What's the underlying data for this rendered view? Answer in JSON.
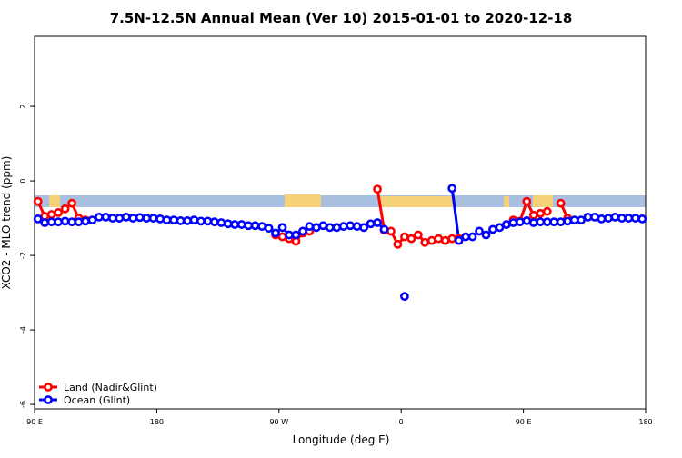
{
  "chart_data": {
    "type": "line",
    "title": "7.5N-12.5N Annual Mean (Ver 10)   2015-01-01 to 2020-12-18",
    "x_label": "Longitude (deg E)",
    "y_label": "XCO2 - MLO trend (ppm)",
    "x": [
      92.5,
      97.5,
      102.5,
      107.5,
      112.5,
      117.5,
      122.5,
      127.5,
      132.5,
      137.5,
      142.5,
      147.5,
      152.5,
      157.5,
      162.5,
      167.5,
      172.5,
      177.5,
      182.5,
      187.5,
      192.5,
      197.5,
      202.5,
      207.5,
      212.5,
      217.5,
      222.5,
      227.5,
      232.5,
      237.5,
      242.5,
      247.5,
      252.5,
      257.5,
      262.5,
      267.5,
      272.5,
      277.5,
      282.5,
      287.5,
      292.5,
      297.5,
      302.5,
      307.5,
      312.5,
      317.5,
      322.5,
      327.5,
      332.5,
      337.5,
      342.5,
      347.5,
      352.5,
      357.5,
      362.5,
      367.5,
      372.5,
      377.5,
      382.5,
      387.5,
      392.5,
      397.5,
      402.5,
      407.5,
      412.5,
      417.5,
      422.5,
      427.5,
      432.5,
      437.5,
      442.5,
      447.5,
      452.5,
      457.5,
      462.5,
      467.5,
      472.5,
      477.5,
      482.5,
      487.5,
      492.5,
      497.5,
      502.5,
      507.5,
      512.5,
      517.5,
      522.5,
      527.5,
      532.5,
      537.5
    ],
    "series": [
      {
        "name": "Land (Nadir&Glint)",
        "color": "#ff0000",
        "values": [
          -0.55,
          -0.95,
          -0.9,
          -0.85,
          -0.75,
          -0.6,
          -1.0,
          -1.05,
          null,
          null,
          null,
          null,
          null,
          null,
          null,
          null,
          null,
          null,
          null,
          null,
          null,
          null,
          null,
          null,
          null,
          null,
          null,
          null,
          null,
          null,
          null,
          null,
          null,
          null,
          null,
          -1.45,
          -1.5,
          -1.55,
          -1.62,
          -1.4,
          -1.35,
          null,
          null,
          null,
          null,
          null,
          null,
          null,
          null,
          null,
          -0.22,
          -1.32,
          -1.35,
          -1.7,
          -1.5,
          -1.55,
          -1.45,
          -1.65,
          -1.6,
          -1.55,
          -1.6,
          -1.55,
          -1.55,
          null,
          null,
          null,
          null,
          null,
          null,
          null,
          -1.05,
          -1.08,
          -0.55,
          -0.92,
          -0.87,
          -0.82,
          null,
          -0.6,
          -1.0,
          null,
          null,
          null,
          null,
          null,
          null,
          null,
          null,
          null,
          null,
          null
        ]
      },
      {
        "name": "Ocean (Glint)",
        "color": "#0000ff",
        "values": [
          -1.02,
          -1.12,
          -1.1,
          -1.1,
          -1.08,
          -1.1,
          -1.1,
          -1.08,
          -1.05,
          -0.97,
          -0.97,
          -1.0,
          -1.0,
          -0.97,
          -1.0,
          -0.98,
          -1.0,
          -1.0,
          -1.02,
          -1.05,
          -1.05,
          -1.07,
          -1.07,
          -1.05,
          -1.08,
          -1.08,
          -1.1,
          -1.12,
          -1.15,
          -1.17,
          -1.17,
          -1.2,
          -1.2,
          -1.22,
          -1.27,
          -1.4,
          -1.25,
          -1.45,
          -1.45,
          -1.35,
          -1.22,
          -1.25,
          -1.2,
          -1.25,
          -1.25,
          -1.22,
          -1.2,
          -1.22,
          -1.25,
          -1.15,
          -1.12,
          -1.3,
          null,
          null,
          -3.1,
          null,
          null,
          null,
          null,
          null,
          null,
          -0.2,
          -1.6,
          -1.5,
          -1.5,
          -1.35,
          -1.45,
          -1.3,
          -1.25,
          -1.17,
          -1.12,
          -1.1,
          -1.07,
          -1.12,
          -1.1,
          -1.1,
          -1.1,
          -1.1,
          -1.08,
          -1.05,
          -1.05,
          -0.97,
          -0.97,
          -1.02,
          -1.0,
          -0.97,
          -1.0,
          -1.0,
          -1.0,
          -1.02
        ]
      }
    ],
    "xlim": [
      90,
      540
    ],
    "xticks": [
      {
        "value": 90,
        "label": "90 E"
      },
      {
        "value": 180,
        "label": "180"
      },
      {
        "value": 270,
        "label": "90 W"
      },
      {
        "value": 360,
        "label": "0"
      },
      {
        "value": 450,
        "label": "90 E"
      },
      {
        "value": 540,
        "label": "180"
      }
    ],
    "ylim": [
      -6.12,
      3.88
    ],
    "yticks": [
      -6,
      -4,
      -2,
      0,
      2
    ],
    "legend": "bottom-left"
  }
}
